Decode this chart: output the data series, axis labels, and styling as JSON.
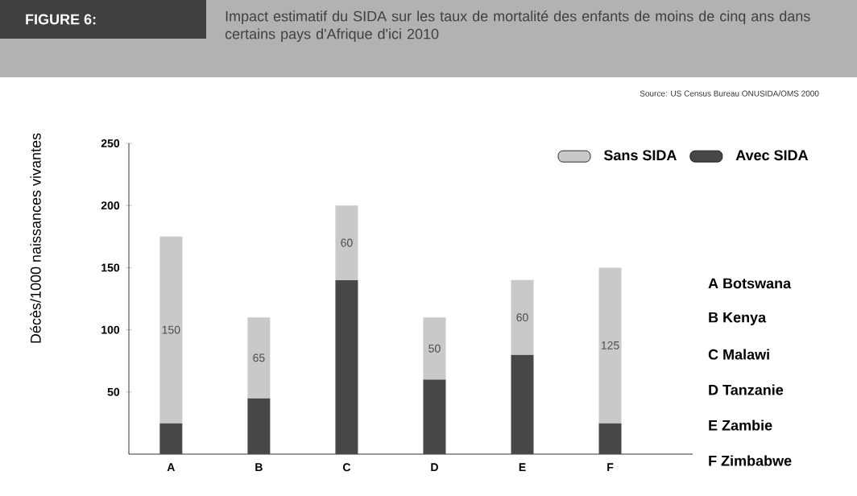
{
  "chart_data": {
    "type": "bar",
    "title": "Impact estimatif du SIDA sur les taux de mortalité des enfants de moins de cinq ans dans certains pays d'Afrique d'ici 2010",
    "ylabel": "Décès/1000 naissances vivantes",
    "categories": [
      "A",
      "B",
      "C",
      "D",
      "E",
      "F"
    ],
    "stacked": true,
    "series": [
      {
        "name": "Avec SIDA",
        "color": "#474747",
        "values": [
          25,
          45,
          140,
          60,
          80,
          25
        ]
      },
      {
        "name": "Sans SIDA",
        "color": "#c9c9c9",
        "values": [
          150,
          65,
          60,
          50,
          60,
          125
        ],
        "value_labels": [
          "150",
          "65",
          "60",
          "50",
          "60",
          "125"
        ]
      }
    ],
    "ylim": [
      0,
      250
    ],
    "yticks": [
      50,
      100,
      150,
      200,
      250
    ],
    "grid": false,
    "legend": "top right",
    "annotations": [
      "FIGURE 6:",
      "Source: US Census Bureau ONUSIDA/OMS 2000",
      "A Botswana",
      "B Kenya",
      "C Malawi",
      "D Tanzanie",
      "E Zambie",
      "F Zimbabwe"
    ]
  }
}
